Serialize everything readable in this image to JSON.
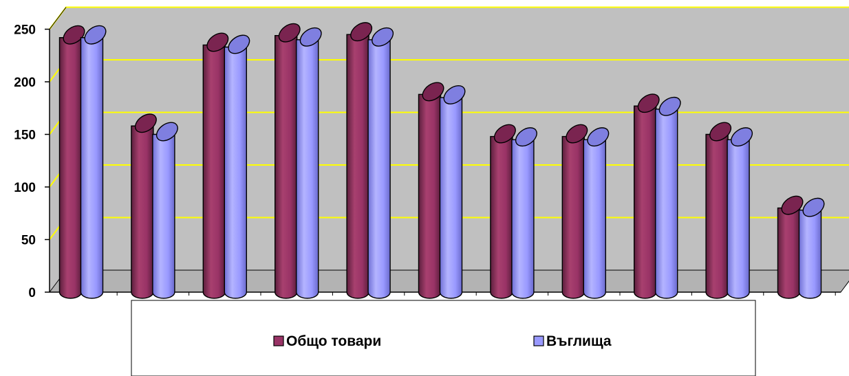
{
  "chart_data": {
    "type": "bar",
    "style": "3d-cylinder",
    "title": "",
    "xlabel": "",
    "ylabel": "",
    "ylim": [
      0,
      250
    ],
    "yticks": [
      0,
      50,
      100,
      150,
      200,
      250
    ],
    "grid": true,
    "legend_position": "bottom",
    "categories_count": 11,
    "series": [
      {
        "name": "Общо товари",
        "color": "#993366",
        "values": [
          242,
          158,
          235,
          244,
          245,
          188,
          148,
          148,
          177,
          150,
          80
        ]
      },
      {
        "name": "Въглища",
        "color": "#9999FF",
        "values": [
          242,
          150,
          233,
          240,
          240,
          185,
          145,
          145,
          174,
          145,
          78
        ]
      }
    ],
    "colors": {
      "wall": "#C0C0C0",
      "gridline": "#FFFF00",
      "floor": "#B3B3B3"
    }
  }
}
